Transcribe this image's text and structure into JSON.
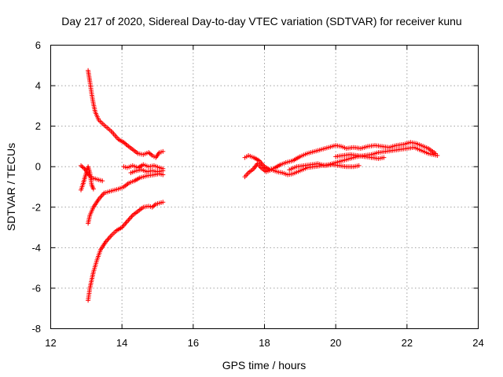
{
  "chart_data": {
    "type": "scatter",
    "title": "Day 217 of 2020, Sidereal Day-to-day VTEC variation (SDTVAR) for receiver kunu",
    "xlabel": "GPS time / hours",
    "ylabel": "SDTVAR / TECUs",
    "xlim": [
      12,
      24
    ],
    "ylim": [
      -8,
      6
    ],
    "xticks": [
      "12",
      "14",
      "16",
      "18",
      "20",
      "22",
      "24"
    ],
    "yticks": [
      "-8",
      "-6",
      "-4",
      "-2",
      "0",
      "2",
      "4",
      "6"
    ],
    "grid": true,
    "marker": "+",
    "series": [
      {
        "name": "track-1",
        "color": "#ff0000",
        "points": [
          [
            13.05,
            4.75
          ],
          [
            13.1,
            4.2
          ],
          [
            13.15,
            3.6
          ],
          [
            13.2,
            3.1
          ],
          [
            13.25,
            2.7
          ],
          [
            13.35,
            2.3
          ],
          [
            13.5,
            2.05
          ],
          [
            13.7,
            1.75
          ],
          [
            13.9,
            1.35
          ],
          [
            14.05,
            1.2
          ],
          [
            14.15,
            1.05
          ],
          [
            14.3,
            0.85
          ],
          [
            14.45,
            0.65
          ],
          [
            14.6,
            0.6
          ],
          [
            14.75,
            0.7
          ],
          [
            14.85,
            0.55
          ],
          [
            14.95,
            0.45
          ],
          [
            15.05,
            0.7
          ],
          [
            15.15,
            0.75
          ]
        ]
      },
      {
        "name": "track-2",
        "color": "#ff0000",
        "points": [
          [
            13.05,
            -6.6
          ],
          [
            13.1,
            -6.0
          ],
          [
            13.15,
            -5.6
          ],
          [
            13.2,
            -5.2
          ],
          [
            13.3,
            -4.6
          ],
          [
            13.4,
            -4.1
          ],
          [
            13.55,
            -3.7
          ],
          [
            13.7,
            -3.4
          ],
          [
            13.85,
            -3.15
          ],
          [
            14.0,
            -3.0
          ],
          [
            14.15,
            -2.7
          ],
          [
            14.3,
            -2.4
          ],
          [
            14.45,
            -2.2
          ],
          [
            14.6,
            -2.0
          ],
          [
            14.75,
            -1.95
          ],
          [
            14.85,
            -2.0
          ],
          [
            14.95,
            -1.85
          ],
          [
            15.05,
            -1.8
          ],
          [
            15.15,
            -1.75
          ]
        ]
      },
      {
        "name": "track-3",
        "color": "#ff0000",
        "points": [
          [
            13.05,
            -2.8
          ],
          [
            13.1,
            -2.4
          ],
          [
            13.2,
            -2.0
          ],
          [
            13.35,
            -1.6
          ],
          [
            13.5,
            -1.3
          ],
          [
            13.7,
            -1.2
          ],
          [
            13.9,
            -1.1
          ],
          [
            14.05,
            -1.0
          ],
          [
            14.2,
            -0.8
          ],
          [
            14.35,
            -0.7
          ],
          [
            14.5,
            -0.55
          ],
          [
            14.7,
            -0.45
          ],
          [
            14.9,
            -0.4
          ],
          [
            15.05,
            -0.35
          ],
          [
            15.15,
            -0.4
          ]
        ]
      },
      {
        "name": "track-4",
        "color": "#ff0000",
        "points": [
          [
            12.85,
            0.05
          ],
          [
            12.95,
            -0.1
          ],
          [
            13.05,
            -0.35
          ],
          [
            13.15,
            -0.55
          ],
          [
            13.25,
            -0.6
          ],
          [
            13.35,
            -0.65
          ],
          [
            13.45,
            -0.7
          ]
        ]
      },
      {
        "name": "track-5",
        "color": "#ff0000",
        "points": [
          [
            12.85,
            -1.15
          ],
          [
            12.9,
            -0.9
          ],
          [
            12.95,
            -0.6
          ],
          [
            13.0,
            -0.3
          ],
          [
            13.05,
            0.0
          ],
          [
            13.1,
            -0.3
          ],
          [
            13.15,
            -0.9
          ],
          [
            13.2,
            -1.1
          ]
        ]
      },
      {
        "name": "track-6",
        "color": "#ff0000",
        "points": [
          [
            14.05,
            0.0
          ],
          [
            14.15,
            -0.05
          ],
          [
            14.3,
            0.05
          ],
          [
            14.45,
            -0.05
          ],
          [
            14.6,
            0.1
          ],
          [
            14.75,
            0.0
          ],
          [
            14.9,
            0.05
          ],
          [
            15.05,
            -0.05
          ],
          [
            15.15,
            -0.1
          ]
        ]
      },
      {
        "name": "track-7",
        "color": "#ff0000",
        "points": [
          [
            14.25,
            -0.3
          ],
          [
            14.4,
            -0.2
          ],
          [
            14.55,
            -0.15
          ],
          [
            14.7,
            -0.25
          ],
          [
            14.85,
            -0.2
          ],
          [
            15.0,
            -0.25
          ],
          [
            15.15,
            -0.2
          ]
        ]
      },
      {
        "name": "track-8",
        "color": "#ff0000",
        "points": [
          [
            17.45,
            0.45
          ],
          [
            17.55,
            0.55
          ],
          [
            17.7,
            0.45
          ],
          [
            17.85,
            0.3
          ],
          [
            18.0,
            0.0
          ],
          [
            18.15,
            -0.15
          ],
          [
            18.3,
            -0.05
          ],
          [
            18.45,
            0.1
          ],
          [
            18.6,
            0.2
          ],
          [
            18.8,
            0.3
          ],
          [
            19.0,
            0.5
          ],
          [
            19.2,
            0.65
          ],
          [
            19.4,
            0.75
          ],
          [
            19.6,
            0.85
          ],
          [
            19.8,
            0.95
          ],
          [
            20.0,
            1.05
          ],
          [
            20.15,
            1.0
          ],
          [
            20.3,
            0.9
          ],
          [
            20.5,
            0.95
          ],
          [
            20.7,
            0.9
          ],
          [
            20.9,
            1.0
          ],
          [
            21.1,
            1.05
          ],
          [
            21.3,
            1.0
          ],
          [
            21.5,
            0.95
          ],
          [
            21.7,
            1.05
          ],
          [
            21.9,
            1.1
          ],
          [
            22.1,
            1.2
          ],
          [
            22.25,
            1.15
          ],
          [
            22.4,
            1.05
          ],
          [
            22.6,
            0.9
          ],
          [
            22.8,
            0.65
          ]
        ]
      },
      {
        "name": "track-9",
        "color": "#ff0000",
        "points": [
          [
            17.45,
            -0.5
          ],
          [
            17.55,
            -0.3
          ],
          [
            17.7,
            -0.1
          ],
          [
            17.8,
            0.15
          ],
          [
            17.9,
            -0.05
          ],
          [
            18.05,
            -0.25
          ],
          [
            18.2,
            -0.15
          ],
          [
            18.35,
            -0.25
          ],
          [
            18.5,
            -0.3
          ],
          [
            18.65,
            -0.4
          ],
          [
            18.8,
            -0.35
          ],
          [
            19.0,
            -0.2
          ],
          [
            19.2,
            -0.05
          ],
          [
            19.4,
            0.0
          ],
          [
            19.6,
            0.05
          ],
          [
            19.8,
            0.1
          ],
          [
            20.0,
            0.2
          ],
          [
            20.2,
            0.3
          ],
          [
            20.4,
            0.4
          ],
          [
            20.6,
            0.5
          ],
          [
            20.8,
            0.55
          ],
          [
            21.0,
            0.6
          ],
          [
            21.2,
            0.7
          ],
          [
            21.4,
            0.75
          ],
          [
            21.6,
            0.8
          ],
          [
            21.8,
            0.85
          ],
          [
            22.0,
            0.9
          ],
          [
            22.2,
            0.95
          ],
          [
            22.4,
            0.8
          ],
          [
            22.6,
            0.65
          ],
          [
            22.85,
            0.55
          ]
        ]
      },
      {
        "name": "track-10",
        "color": "#ff0000",
        "points": [
          [
            18.7,
            -0.15
          ],
          [
            18.9,
            0.0
          ],
          [
            19.1,
            0.05
          ],
          [
            19.3,
            0.1
          ],
          [
            19.5,
            0.15
          ],
          [
            19.7,
            0.05
          ],
          [
            19.9,
            0.1
          ],
          [
            20.1,
            0.05
          ],
          [
            20.3,
            0.0
          ],
          [
            20.5,
            0.0
          ],
          [
            20.65,
            0.05
          ]
        ]
      },
      {
        "name": "track-11",
        "color": "#ff0000",
        "points": [
          [
            20.0,
            0.5
          ],
          [
            20.2,
            0.55
          ],
          [
            20.4,
            0.6
          ],
          [
            20.6,
            0.55
          ],
          [
            20.8,
            0.5
          ],
          [
            21.0,
            0.45
          ],
          [
            21.2,
            0.4
          ],
          [
            21.35,
            0.45
          ]
        ]
      }
    ]
  }
}
